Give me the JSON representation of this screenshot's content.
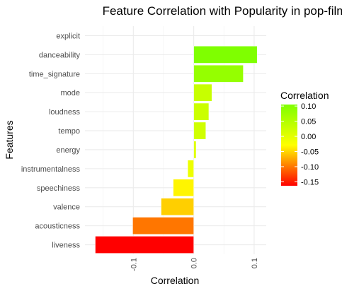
{
  "chart_data": {
    "type": "bar",
    "orientation": "horizontal",
    "title": "Feature Correlation with Popularity in pop-film",
    "xlabel": "Correlation",
    "ylabel": "Features",
    "categories": [
      "explicit",
      "danceability",
      "time_signature",
      "mode",
      "loudness",
      "tempo",
      "energy",
      "instrumentalness",
      "speechiness",
      "valence",
      "acousticness",
      "liveness"
    ],
    "values": [
      0.0,
      0.105,
      0.082,
      0.03,
      0.025,
      0.02,
      0.004,
      -0.01,
      -0.034,
      -0.054,
      -0.101,
      -0.163
    ],
    "xlim": [
      -0.18,
      0.12
    ],
    "x_ticks": [
      -0.1,
      0.0,
      0.1
    ],
    "x_tick_labels": [
      "-0.1",
      "0.0",
      "0.1"
    ],
    "grid": true,
    "legend": {
      "title": "Correlation",
      "position": "right",
      "ticks": [
        0.1,
        0.05,
        0.0,
        -0.05,
        -0.1,
        -0.15
      ],
      "tick_labels": [
        "0.10",
        "0.05",
        "0.00",
        "-0.05",
        "-0.10",
        "-0.15"
      ],
      "range": [
        -0.163,
        0.105
      ]
    },
    "colors": {
      "low": "#ff0000",
      "mid": "#ffff00",
      "high": "#7fff00",
      "grid": "#ebebeb"
    }
  }
}
